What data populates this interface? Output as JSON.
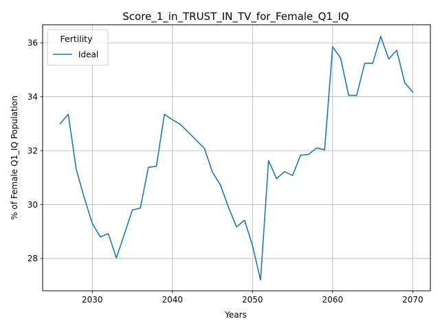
{
  "chart_data": {
    "type": "line",
    "title": "Score_1_in_TRUST_IN_TV_for_Female_Q1_IQ",
    "xlabel": "Years",
    "ylabel": "% of Female Q1_IQ Population",
    "xlim": [
      2023.8,
      2072.2
    ],
    "ylim": [
      26.8,
      36.67
    ],
    "xticks": [
      2030,
      2040,
      2050,
      2060,
      2070
    ],
    "yticks": [
      28,
      30,
      32,
      34,
      36
    ],
    "grid": true,
    "legend": {
      "title": "Fertility",
      "position": "top-left"
    },
    "colors": {
      "Ideal": "#1f77b4"
    },
    "series": [
      {
        "name": "Ideal",
        "x": [
          2026,
          2027,
          2028,
          2029,
          2030,
          2031,
          2032,
          2033,
          2034,
          2035,
          2036,
          2037,
          2038,
          2039,
          2040,
          2041,
          2042,
          2043,
          2044,
          2045,
          2046,
          2047,
          2048,
          2049,
          2050,
          2051,
          2052,
          2053,
          2054,
          2055,
          2056,
          2057,
          2058,
          2059,
          2060,
          2061,
          2062,
          2063,
          2064,
          2065,
          2066,
          2067,
          2068,
          2069,
          2070
        ],
        "y": [
          33.0,
          33.35,
          31.3,
          30.25,
          29.3,
          28.8,
          28.92,
          28.02,
          28.9,
          29.8,
          29.87,
          31.38,
          31.42,
          33.35,
          33.15,
          32.97,
          32.68,
          32.38,
          32.08,
          31.2,
          30.72,
          29.9,
          29.17,
          29.42,
          28.48,
          27.2,
          31.63,
          30.96,
          31.22,
          31.08,
          31.83,
          31.86,
          32.1,
          32.03,
          35.85,
          35.43,
          34.05,
          34.05,
          35.24,
          35.24,
          36.24,
          35.4,
          35.72,
          34.52,
          34.17
        ]
      }
    ]
  }
}
